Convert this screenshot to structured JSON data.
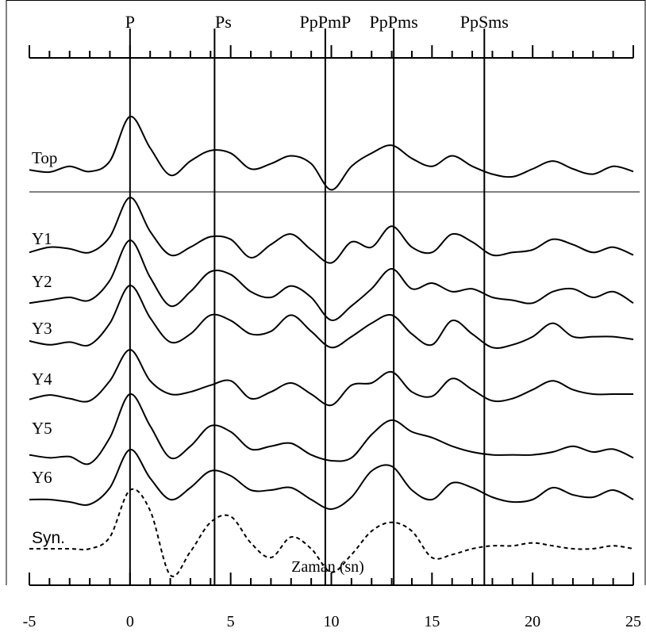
{
  "chart_data": {
    "type": "line",
    "title": "",
    "xlabel": "Zaman (sn)",
    "ylabel": "",
    "xlim": [
      -5,
      25
    ],
    "x_ticks": [
      -5,
      0,
      5,
      10,
      15,
      20,
      25
    ],
    "x_tick_labels": [
      "-5",
      "0",
      "5",
      "10",
      "15",
      "20",
      "25"
    ],
    "grid": false,
    "legend": "none",
    "phase_markers": [
      {
        "label": "P",
        "x": 0.0
      },
      {
        "label": "Ps",
        "x": 4.2
      },
      {
        "label": "PpPmP",
        "x": 9.7
      },
      {
        "label": "PpPms",
        "x": 13.1
      },
      {
        "label": "PpSms",
        "x": 17.6
      }
    ],
    "x": [
      -5,
      -4,
      -3,
      -2,
      -1,
      0,
      1,
      2,
      3,
      4,
      5,
      6,
      7,
      8,
      9,
      10,
      11,
      12,
      13,
      14,
      15,
      16,
      17,
      18,
      19,
      20,
      21,
      22,
      23,
      24,
      25
    ],
    "series": [
      {
        "name": "Top",
        "style": "solid",
        "values": [
          -0.02,
          -0.06,
          0.05,
          -0.05,
          0.15,
          1.0,
          0.4,
          -0.12,
          0.15,
          0.35,
          0.3,
          0.0,
          0.1,
          0.25,
          0.1,
          -0.4,
          0.05,
          0.3,
          0.45,
          0.2,
          0.05,
          0.25,
          0.05,
          -0.1,
          -0.15,
          0.0,
          0.15,
          0.0,
          -0.1,
          0.05,
          -0.05
        ]
      },
      {
        "name": "Y1",
        "style": "solid",
        "values": [
          -0.05,
          0.05,
          0.02,
          -0.05,
          0.25,
          1.0,
          0.35,
          -0.1,
          0.05,
          0.25,
          0.2,
          -0.15,
          0.1,
          0.3,
          0.0,
          -0.25,
          0.15,
          0.05,
          0.45,
          0.05,
          -0.05,
          0.3,
          0.15,
          -0.1,
          -0.05,
          0.0,
          0.2,
          0.1,
          -0.05,
          0.05,
          -0.1
        ]
      },
      {
        "name": "Y2",
        "style": "solid",
        "values": [
          -0.1,
          -0.05,
          0.0,
          -0.05,
          0.3,
          1.0,
          0.35,
          -0.15,
          0.1,
          0.45,
          0.4,
          0.1,
          0.0,
          0.2,
          0.0,
          -0.4,
          -0.15,
          0.15,
          0.5,
          0.15,
          0.25,
          0.1,
          0.15,
          0.0,
          -0.05,
          -0.1,
          0.1,
          0.15,
          0.0,
          0.1,
          -0.1
        ]
      },
      {
        "name": "Y3",
        "style": "solid",
        "values": [
          -0.03,
          -0.1,
          -0.05,
          -0.1,
          0.3,
          1.0,
          0.4,
          -0.05,
          0.1,
          0.45,
          0.35,
          0.1,
          0.15,
          0.45,
          0.15,
          -0.15,
          0.05,
          0.3,
          0.45,
          0.1,
          -0.1,
          0.35,
          0.1,
          -0.15,
          -0.1,
          0.05,
          0.3,
          0.05,
          0.05,
          0.05,
          0.0
        ]
      },
      {
        "name": "Y4",
        "style": "solid",
        "values": [
          -0.12,
          -0.02,
          -0.1,
          -0.15,
          0.3,
          1.0,
          0.3,
          0.0,
          0.05,
          0.2,
          0.3,
          -0.1,
          0.05,
          0.25,
          0.0,
          -0.25,
          0.2,
          0.25,
          0.5,
          0.05,
          -0.05,
          0.35,
          0.1,
          -0.15,
          -0.1,
          0.1,
          0.3,
          0.1,
          0.0,
          0.0,
          0.0
        ]
      },
      {
        "name": "Y5",
        "style": "solid",
        "values": [
          -0.05,
          -0.1,
          -0.08,
          -0.2,
          0.25,
          1.0,
          0.45,
          -0.1,
          0.1,
          0.45,
          0.35,
          0.05,
          0.1,
          0.15,
          -0.05,
          -0.15,
          -0.1,
          0.3,
          0.55,
          0.35,
          0.25,
          0.1,
          0.0,
          -0.05,
          -0.05,
          -0.05,
          0.0,
          0.1,
          0.0,
          0.05,
          -0.1
        ]
      },
      {
        "name": "Y6",
        "style": "solid",
        "values": [
          -0.05,
          -0.05,
          -0.1,
          -0.15,
          0.2,
          1.0,
          0.4,
          -0.05,
          0.2,
          0.55,
          0.45,
          0.15,
          0.15,
          0.2,
          -0.05,
          -0.25,
          0.0,
          0.55,
          0.65,
          0.15,
          -0.05,
          0.3,
          0.2,
          0.0,
          -0.1,
          -0.05,
          0.2,
          0.05,
          0.0,
          0.15,
          -0.05
        ]
      },
      {
        "name": "Syn.",
        "style": "dashed",
        "values": [
          0.0,
          0.0,
          0.0,
          0.0,
          0.2,
          1.0,
          0.65,
          -0.45,
          -0.05,
          0.45,
          0.55,
          0.1,
          -0.15,
          0.2,
          0.0,
          -0.4,
          -0.1,
          0.3,
          0.45,
          0.3,
          -0.15,
          -0.1,
          0.0,
          0.05,
          0.05,
          0.1,
          0.05,
          0.0,
          0.0,
          0.05,
          0.0
        ]
      }
    ]
  }
}
